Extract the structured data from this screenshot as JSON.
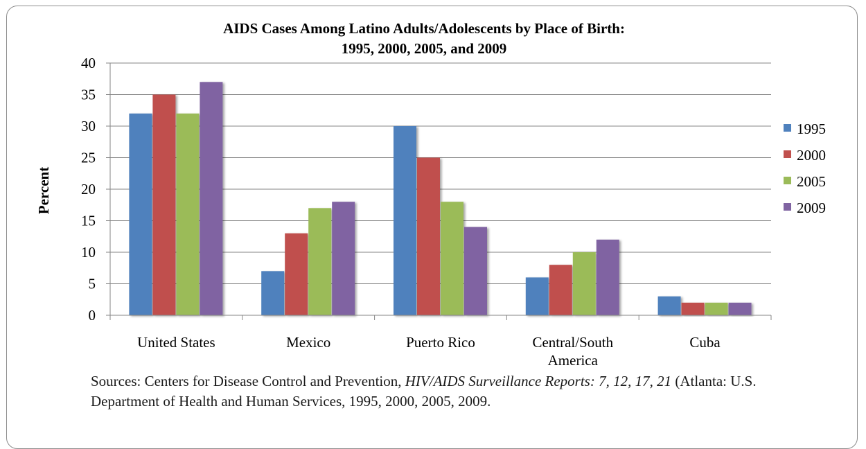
{
  "chart_data": {
    "type": "bar",
    "title": "AIDS Cases Among Latino Adults/Adolescents by Place of Birth:",
    "subtitle": "1995, 2000, 2005, and 2009",
    "ylabel": "Percent",
    "xlabel": "",
    "ylim": [
      0,
      40
    ],
    "yticks": [
      0,
      5,
      10,
      15,
      20,
      25,
      30,
      35,
      40
    ],
    "grid": true,
    "legend_position": "right",
    "categories": [
      "United States",
      "Mexico",
      "Puerto Rico",
      "Central/South America",
      "Cuba"
    ],
    "category_lines": [
      [
        "United States"
      ],
      [
        "Mexico"
      ],
      [
        "Puerto Rico"
      ],
      [
        "Central/South",
        "America"
      ],
      [
        "Cuba"
      ]
    ],
    "series": [
      {
        "name": "1995",
        "color": "#4f81bd",
        "values": [
          32,
          7,
          30,
          6,
          3
        ]
      },
      {
        "name": "2000",
        "color": "#c0504d",
        "values": [
          35,
          13,
          25,
          8,
          2
        ]
      },
      {
        "name": "2005",
        "color": "#9bbb59",
        "values": [
          32,
          17,
          18,
          10,
          2
        ]
      },
      {
        "name": "2009",
        "color": "#8064a2",
        "values": [
          37,
          18,
          14,
          12,
          2
        ]
      }
    ]
  },
  "sources": {
    "prefix": "Sources:  Centers for Disease Control and Prevention,",
    "italic": " HIV/AIDS Surveillance Reports:  7, 12, 17, 21",
    "suffix": " (Atlanta:  U.S. Department of Health and Human Services, 1995, 2000, 2005, 2009."
  }
}
